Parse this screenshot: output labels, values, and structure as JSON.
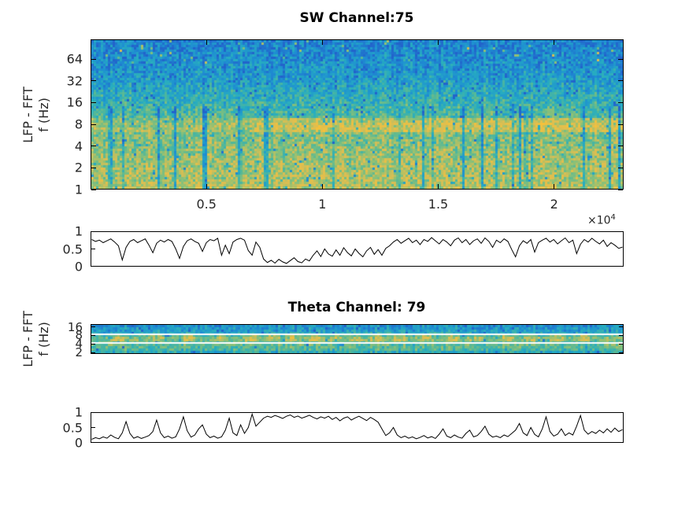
{
  "figure": {
    "background": "#ffffff"
  },
  "sw_panel": {
    "title": "SW Channel:75",
    "ylabel_line1": "LFP - FFT",
    "ylabel_line2": "f (Hz)",
    "x_exponent_base": "×10",
    "x_exponent_power": "4"
  },
  "theta_panel": {
    "title": "Theta Channel: 79",
    "ylabel_line1": "LFP - FFT",
    "ylabel_line2": "f (Hz)"
  },
  "chart_data": [
    {
      "id": "sw_spectrogram",
      "type": "heatmap",
      "title": "SW Channel:75",
      "ylabel": "LFP - FFT f (Hz)",
      "y_scale": "log2",
      "y_ticks_hz": [
        1,
        2,
        4,
        8,
        16,
        32,
        64
      ],
      "y_range_hz": [
        1,
        120
      ],
      "x_ticks": [
        0.5,
        1,
        1.5,
        2
      ],
      "x_tick_multiplier": 10000,
      "x_range": [
        0,
        23000
      ],
      "grid": false,
      "description": "Broadband LFP spectrogram: low power (blue) above ~16 Hz, high power (yellow) below ~8 Hz, prominent ~8 Hz yellow band strongest in the right two-thirds, vertical low-power teal streaks at low frequencies.",
      "colormap": [
        [
          0,
          "#2263cb"
        ],
        [
          0.18,
          "#1e8fd2"
        ],
        [
          0.35,
          "#27adc0"
        ],
        [
          0.5,
          "#55b897"
        ],
        [
          0.65,
          "#93c173"
        ],
        [
          0.8,
          "#dcbe52"
        ],
        [
          1,
          "#f5c13a"
        ]
      ],
      "render": {
        "seed": 7,
        "cell": 3,
        "noise": 0.17,
        "profile": [
          [
            0,
            0.13
          ],
          [
            0.25,
            0.25
          ],
          [
            0.42,
            0.4
          ],
          [
            0.52,
            0.5
          ],
          [
            0.57,
            0.6
          ],
          [
            0.65,
            0.6
          ],
          [
            0.8,
            0.66
          ],
          [
            1,
            0.72
          ]
        ],
        "band": {
          "r0": 0.52,
          "r1": 0.62,
          "x_split": 0.3,
          "boost_left": 0.08,
          "boost_right": 0.18
        },
        "streak_prob": 0.09,
        "streak_strength": 0.3,
        "fleck_prob": 0.035,
        "fleck_strength": 0.38,
        "top_line_prob": 0.02,
        "top_line_boost": 0.5
      }
    },
    {
      "id": "sw_ratio",
      "type": "line",
      "ylim": [
        0,
        1
      ],
      "y_ticks": [
        0,
        0.5,
        1
      ],
      "x_range_frac": [
        0,
        1
      ],
      "line_color": "#000000",
      "values": [
        0.8,
        0.74,
        0.78,
        0.7,
        0.76,
        0.82,
        0.72,
        0.6,
        0.15,
        0.55,
        0.74,
        0.8,
        0.7,
        0.76,
        0.82,
        0.62,
        0.38,
        0.68,
        0.78,
        0.72,
        0.8,
        0.74,
        0.5,
        0.2,
        0.58,
        0.76,
        0.82,
        0.74,
        0.68,
        0.42,
        0.7,
        0.8,
        0.76,
        0.84,
        0.3,
        0.62,
        0.35,
        0.72,
        0.8,
        0.84,
        0.78,
        0.45,
        0.3,
        0.72,
        0.55,
        0.18,
        0.07,
        0.14,
        0.05,
        0.17,
        0.09,
        0.04,
        0.13,
        0.22,
        0.1,
        0.06,
        0.18,
        0.12,
        0.3,
        0.44,
        0.26,
        0.5,
        0.34,
        0.27,
        0.47,
        0.3,
        0.54,
        0.38,
        0.28,
        0.5,
        0.36,
        0.25,
        0.44,
        0.55,
        0.33,
        0.48,
        0.3,
        0.52,
        0.6,
        0.72,
        0.8,
        0.68,
        0.76,
        0.84,
        0.7,
        0.78,
        0.64,
        0.8,
        0.74,
        0.86,
        0.76,
        0.66,
        0.8,
        0.72,
        0.6,
        0.78,
        0.85,
        0.7,
        0.8,
        0.64,
        0.76,
        0.82,
        0.68,
        0.85,
        0.74,
        0.55,
        0.78,
        0.7,
        0.82,
        0.74,
        0.48,
        0.25,
        0.6,
        0.76,
        0.68,
        0.8,
        0.4,
        0.7,
        0.78,
        0.84,
        0.72,
        0.8,
        0.66,
        0.76,
        0.85,
        0.7,
        0.78,
        0.35,
        0.65,
        0.8,
        0.72,
        0.84,
        0.74,
        0.66,
        0.78,
        0.58,
        0.7,
        0.62,
        0.52,
        0.56
      ]
    },
    {
      "id": "theta_spectrogram",
      "type": "heatmap",
      "title": "Theta Channel: 79",
      "ylabel": "LFP - FFT f (Hz)",
      "y_scale": "log2",
      "y_ticks_hz": [
        2,
        4,
        8,
        16
      ],
      "y_range_hz": [
        1.8,
        20
      ],
      "white_lines_hz": [
        9,
        4.1
      ],
      "grid": false,
      "description": "Narrow theta spectrogram: teal/blue above ~9 Hz, yellow-green 4-9 Hz theta band with bright yellow patches, yellow-green below 4 Hz; white horizontal boundary lines at ~4 and ~9 Hz.",
      "colormap": [
        [
          0,
          "#2263cb"
        ],
        [
          0.18,
          "#1e8fd2"
        ],
        [
          0.35,
          "#27adc0"
        ],
        [
          0.5,
          "#55b897"
        ],
        [
          0.65,
          "#93c173"
        ],
        [
          0.8,
          "#dcbe52"
        ],
        [
          1,
          "#f5c13a"
        ]
      ],
      "render": {
        "seed": 11,
        "cell": 3,
        "noise": 0.15,
        "profile": [
          [
            0,
            0.22
          ],
          [
            0.25,
            0.3
          ],
          [
            0.34,
            0.38
          ],
          [
            0.4,
            0.52
          ],
          [
            0.5,
            0.58
          ],
          [
            0.62,
            0.5
          ],
          [
            0.72,
            0.52
          ],
          [
            0.9,
            0.48
          ],
          [
            1,
            0.36
          ]
        ],
        "white_lines_r": [
          0.34,
          0.64
        ],
        "blob_centers": [
          0.05,
          0.12,
          0.18,
          0.24,
          0.3,
          0.34,
          0.38,
          0.42,
          0.46,
          0.5,
          0.54,
          0.58,
          0.63,
          0.68,
          0.73,
          0.78,
          0.83,
          0.88,
          0.93
        ],
        "blob_width": 0.013,
        "blob_boost": 0.22,
        "blob_band": [
          0.36,
          0.62
        ],
        "fleck_prob": 0.04,
        "fleck_strength": 0.3
      }
    },
    {
      "id": "theta_ratio",
      "type": "line",
      "ylim": [
        0,
        1
      ],
      "y_ticks": [
        0,
        0.5,
        1
      ],
      "x_range_frac": [
        0,
        1
      ],
      "line_color": "#000000",
      "values": [
        0.06,
        0.12,
        0.08,
        0.15,
        0.1,
        0.22,
        0.13,
        0.08,
        0.3,
        0.72,
        0.28,
        0.1,
        0.16,
        0.09,
        0.14,
        0.2,
        0.35,
        0.78,
        0.3,
        0.12,
        0.18,
        0.1,
        0.15,
        0.45,
        0.9,
        0.38,
        0.14,
        0.22,
        0.45,
        0.6,
        0.25,
        0.12,
        0.18,
        0.1,
        0.15,
        0.4,
        0.85,
        0.3,
        0.2,
        0.6,
        0.28,
        0.5,
        1.0,
        0.55,
        0.7,
        0.85,
        0.92,
        0.88,
        0.95,
        0.9,
        0.84,
        0.92,
        0.97,
        0.88,
        0.93,
        0.85,
        0.9,
        0.96,
        0.88,
        0.82,
        0.9,
        0.85,
        0.92,
        0.8,
        0.88,
        0.75,
        0.85,
        0.9,
        0.78,
        0.86,
        0.92,
        0.84,
        0.76,
        0.88,
        0.8,
        0.7,
        0.45,
        0.2,
        0.3,
        0.5,
        0.22,
        0.12,
        0.18,
        0.1,
        0.15,
        0.08,
        0.13,
        0.2,
        0.11,
        0.16,
        0.09,
        0.25,
        0.45,
        0.18,
        0.12,
        0.22,
        0.14,
        0.1,
        0.28,
        0.4,
        0.15,
        0.2,
        0.35,
        0.55,
        0.25,
        0.14,
        0.18,
        0.12,
        0.22,
        0.16,
        0.28,
        0.4,
        0.65,
        0.3,
        0.2,
        0.5,
        0.24,
        0.15,
        0.45,
        0.9,
        0.35,
        0.18,
        0.25,
        0.45,
        0.2,
        0.3,
        0.22,
        0.55,
        0.95,
        0.4,
        0.25,
        0.35,
        0.28,
        0.4,
        0.3,
        0.45,
        0.32,
        0.48,
        0.35,
        0.42
      ]
    }
  ]
}
